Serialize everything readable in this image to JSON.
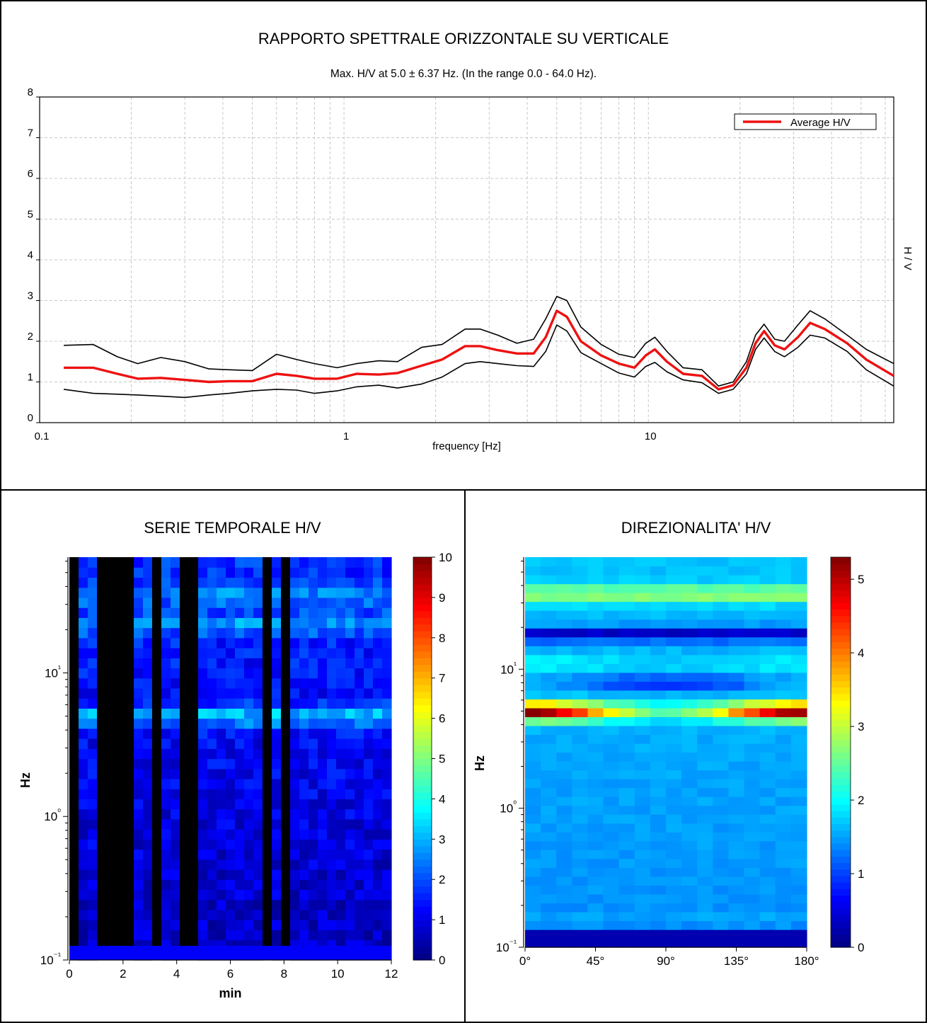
{
  "top_panel": {
    "title": "RAPPORTO SPETTRALE ORIZZONTALE SU VERTICALE",
    "subtitle": "Max. H/V at 5.0 ± 6.37 Hz. (In the range 0.0 - 64.0 Hz)."
  },
  "bottom_left_panel": {
    "title": "SERIE TEMPORALE H/V"
  },
  "bottom_right_panel": {
    "title": "DIREZIONALITA' H/V"
  },
  "colors": {
    "average": "#ee1111",
    "bounds": "#000000",
    "grid": "#c8c8c8",
    "masked": "#000000"
  },
  "chart_data": [
    {
      "type": "line",
      "xlabel": "frequency [Hz]",
      "ylabel": "H / V",
      "xscale": "log",
      "xlim": [
        0.1,
        64
      ],
      "ylim": [
        0,
        8
      ],
      "x_ticks": [
        0.1,
        1,
        10
      ],
      "x_tick_labels": [
        "0.1",
        "1",
        "10"
      ],
      "y_ticks": [
        0,
        1,
        2,
        3,
        4,
        5,
        6,
        7,
        8
      ],
      "y_tick_labels": [
        "0",
        "1",
        "2",
        "3",
        "4",
        "5",
        "6",
        "7",
        "8"
      ],
      "grid": true,
      "legend": {
        "position": "top-right",
        "entries": [
          "Average H/V"
        ]
      },
      "x": [
        0.12,
        0.15,
        0.18,
        0.21,
        0.25,
        0.3,
        0.36,
        0.42,
        0.5,
        0.6,
        0.7,
        0.8,
        0.95,
        1.1,
        1.3,
        1.5,
        1.8,
        2.1,
        2.5,
        2.8,
        3.2,
        3.7,
        4.2,
        4.6,
        5.0,
        5.4,
        6.0,
        7.0,
        8.0,
        9.0,
        9.8,
        10.5,
        11.5,
        13.0,
        15.0,
        17.0,
        19.0,
        21.0,
        22.5,
        24.0,
        26.0,
        28.0,
        31.0,
        34.0,
        38.0,
        45.0,
        52.0,
        64.0
      ],
      "series": [
        {
          "name": "Average H/V",
          "values": [
            1.35,
            1.35,
            1.2,
            1.08,
            1.1,
            1.05,
            1.0,
            1.02,
            1.02,
            1.2,
            1.15,
            1.08,
            1.08,
            1.2,
            1.18,
            1.22,
            1.4,
            1.55,
            1.88,
            1.88,
            1.78,
            1.7,
            1.7,
            2.1,
            2.75,
            2.6,
            2.0,
            1.65,
            1.45,
            1.35,
            1.65,
            1.8,
            1.5,
            1.2,
            1.15,
            0.82,
            0.92,
            1.35,
            1.95,
            2.25,
            1.9,
            1.8,
            2.1,
            2.45,
            2.3,
            1.95,
            1.55,
            1.15
          ]
        },
        {
          "values": [
            1.9,
            1.92,
            1.62,
            1.45,
            1.6,
            1.5,
            1.32,
            1.3,
            1.28,
            1.68,
            1.55,
            1.45,
            1.35,
            1.45,
            1.52,
            1.5,
            1.85,
            1.92,
            2.3,
            2.3,
            2.15,
            1.95,
            2.05,
            2.55,
            3.1,
            3.0,
            2.35,
            1.92,
            1.68,
            1.6,
            1.95,
            2.1,
            1.75,
            1.35,
            1.3,
            0.9,
            1.0,
            1.5,
            2.15,
            2.42,
            2.05,
            2.0,
            2.4,
            2.75,
            2.55,
            2.15,
            1.8,
            1.45
          ]
        },
        {
          "values": [
            0.82,
            0.72,
            0.7,
            0.68,
            0.65,
            0.62,
            0.68,
            0.72,
            0.78,
            0.82,
            0.8,
            0.72,
            0.78,
            0.88,
            0.92,
            0.85,
            0.95,
            1.12,
            1.45,
            1.5,
            1.45,
            1.4,
            1.38,
            1.75,
            2.4,
            2.25,
            1.72,
            1.45,
            1.22,
            1.12,
            1.38,
            1.48,
            1.25,
            1.05,
            0.98,
            0.72,
            0.82,
            1.2,
            1.8,
            2.08,
            1.75,
            1.62,
            1.85,
            2.15,
            2.08,
            1.75,
            1.3,
            0.9
          ]
        }
      ]
    },
    {
      "type": "heatmap",
      "xlabel": "min",
      "ylabel": "Hz",
      "xlim": [
        0,
        12
      ],
      "x_ticks": [
        0,
        2,
        4,
        6,
        8,
        10,
        12
      ],
      "x_tick_labels": [
        "0",
        "2",
        "4",
        "6",
        "8",
        "10",
        "12"
      ],
      "yscale": "log",
      "ylim": [
        0.1,
        64
      ],
      "y_ticks": [
        0.1,
        1,
        10
      ],
      "y_tick_labels": [
        "10⁻¹",
        "10⁰",
        "10¹"
      ],
      "colorbar": {
        "min": 0,
        "max": 10,
        "ticks": [
          0,
          1,
          2,
          3,
          4,
          5,
          6,
          7,
          8,
          9,
          10
        ],
        "tick_labels": [
          "0",
          "1",
          "2",
          "3",
          "4",
          "5",
          "6",
          "7",
          "8",
          "9",
          "10"
        ],
        "colormap": "jet"
      },
      "n_windows": 35,
      "masked_windows": [
        0,
        3,
        4,
        5,
        6,
        9,
        12,
        13,
        21,
        23
      ],
      "peak_frequencies_hz": [
        5.0,
        22.0,
        35.0
      ]
    },
    {
      "type": "heatmap",
      "xlabel": "",
      "ylabel": "Hz",
      "x_ticks": [
        0,
        45,
        90,
        135,
        180
      ],
      "x_tick_labels": [
        "0°",
        "45°",
        "90°",
        "135°",
        "180°"
      ],
      "xlim": [
        0,
        180
      ],
      "yscale": "log",
      "ylim": [
        0.1,
        64
      ],
      "y_ticks": [
        0.1,
        1,
        10
      ],
      "y_tick_labels": [
        "10⁻¹",
        "10⁰",
        "10¹"
      ],
      "colorbar": {
        "min": 0,
        "max": 5.3,
        "ticks": [
          0,
          1,
          2,
          3,
          4,
          5
        ],
        "tick_labels": [
          "0",
          "1",
          "2",
          "3",
          "4",
          "5"
        ],
        "colormap": "jet"
      },
      "peak_frequency_hz": 5.0,
      "peak_value_at_0_deg": 5.2,
      "peak_value_at_100_deg": 2.4
    }
  ]
}
